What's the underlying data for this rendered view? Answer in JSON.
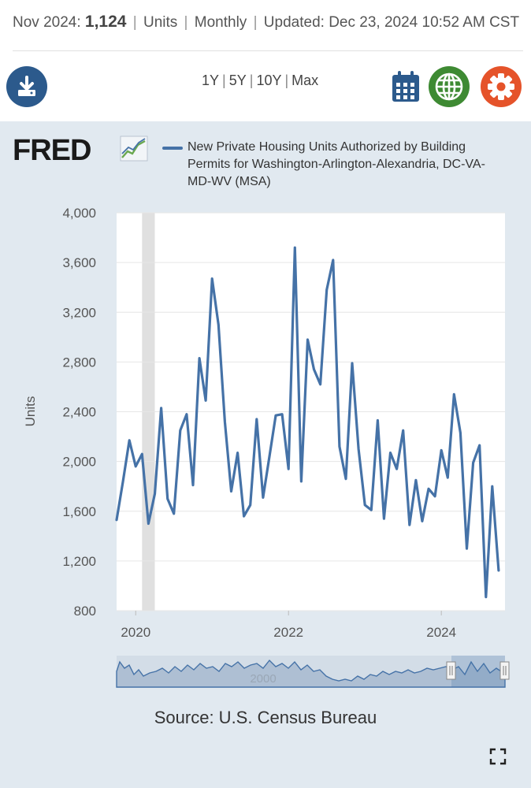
{
  "header": {
    "period": "Nov 2024:",
    "value": "1,124",
    "units": "Units",
    "frequency": "Monthly",
    "updated_label": "Updated:",
    "updated": "Dec 23, 2024 10:52 AM CST"
  },
  "toolbar": {
    "download_icon": "download-icon",
    "calendar_icon": "calendar-icon",
    "globe_icon": "globe-icon",
    "settings_icon": "gear-icon",
    "ranges": [
      "1Y",
      "5Y",
      "10Y",
      "Max"
    ]
  },
  "logo_text": "FRED",
  "source": "Source: U.S. Census Bureau",
  "navigator_label": "2000",
  "colors": {
    "line": "#4572a7",
    "plot_bg": "#ffffff",
    "chart_bg": "#e1e9f0",
    "recession": "#e0e0e0"
  },
  "chart_data": {
    "type": "line",
    "title": "",
    "legend": "New Private Housing Units Authorized by Building Permits for Washington-Arlington-Alexandria, DC-VA-MD-WV (MSA)",
    "xlabel": "",
    "ylabel": "Units",
    "ylim": [
      800,
      4000
    ],
    "yticks": [
      800,
      1200,
      1600,
      2000,
      2400,
      2800,
      3200,
      3600,
      4000
    ],
    "ytick_labels": [
      "800",
      "1,200",
      "1,600",
      "2,000",
      "2,400",
      "2,800",
      "3,200",
      "3,600",
      "4,000"
    ],
    "xlim": [
      "2019-10",
      "2024-11"
    ],
    "xticks": [
      "2020-01",
      "2022-01",
      "2024-01"
    ],
    "xtick_labels": [
      "2020",
      "2022",
      "2024"
    ],
    "grid": true,
    "recession_shading": [
      [
        "2020-02",
        "2020-04"
      ]
    ],
    "series": [
      {
        "name": "New Private Housing Units Authorized by Building Permits for Washington-Arlington-Alexandria, DC-VA-MD-WV (MSA)",
        "start": "2019-10",
        "values": [
          1530,
          1840,
          2170,
          1960,
          2060,
          1500,
          1740,
          2430,
          1700,
          1580,
          2250,
          2380,
          1810,
          2830,
          2490,
          3470,
          3100,
          2320,
          1760,
          2070,
          1560,
          1650,
          2340,
          1710,
          2040,
          2370,
          2380,
          1940,
          3720,
          1840,
          2980,
          2740,
          2620,
          3380,
          3620,
          2120,
          1860,
          2790,
          2100,
          1650,
          1610,
          2330,
          1540,
          2070,
          1940,
          2250,
          1490,
          1850,
          1520,
          1780,
          1720,
          2090,
          1870,
          2540,
          2230,
          1300,
          1990,
          2130,
          910,
          1800,
          1124
        ]
      }
    ]
  }
}
